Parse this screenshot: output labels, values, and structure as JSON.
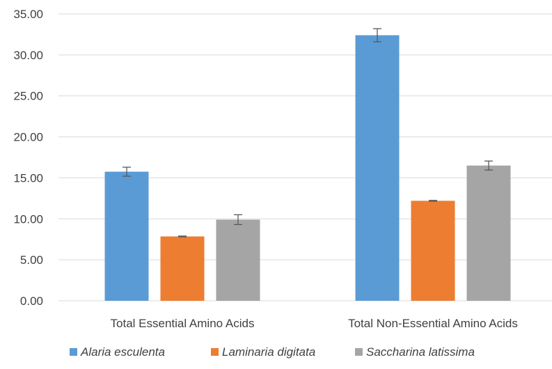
{
  "chart_data": {
    "type": "bar",
    "categories": [
      "Total Essential Amino Acids",
      "Total Non-Essential Amino Acids"
    ],
    "series": [
      {
        "name": "Alaria esculenta",
        "color": "#5B9BD5",
        "values": [
          15.75,
          32.4
        ],
        "errors": [
          0.55,
          0.8
        ]
      },
      {
        "name": "Laminaria digitata",
        "color": "#ED7D31",
        "values": [
          7.85,
          12.2
        ],
        "errors": [
          0.05,
          0.05
        ]
      },
      {
        "name": "Saccharina latissima",
        "color": "#A5A5A5",
        "values": [
          9.9,
          16.5
        ],
        "errors": [
          0.6,
          0.55
        ]
      }
    ],
    "ylim": [
      0,
      35
    ],
    "yticks": [
      "0.00",
      "5.00",
      "10.00",
      "15.00",
      "20.00",
      "25.00",
      "30.00",
      "35.00"
    ],
    "ytick_values": [
      0,
      5,
      10,
      15,
      20,
      25,
      30,
      35
    ],
    "grid": true,
    "legend_position": "bottom",
    "gridline_color": "#D9D9D9",
    "errorbar_color": "#595959"
  }
}
